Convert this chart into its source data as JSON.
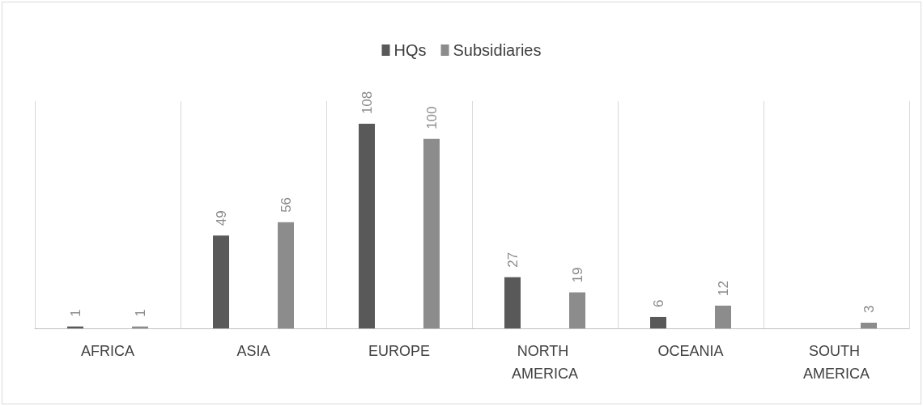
{
  "chart_data": {
    "type": "bar",
    "categories": [
      "AFRICA",
      "ASIA",
      "EUROPE",
      "NORTH AMERICA",
      "OCEANIA",
      "SOUTH AMERICA"
    ],
    "series": [
      {
        "name": "HQs",
        "color": "#595959",
        "values": [
          1,
          49,
          108,
          27,
          6,
          null
        ],
        "value_labels": [
          "1",
          "49",
          "108",
          "27",
          "6",
          null
        ]
      },
      {
        "name": "Subsidiaries",
        "color": "#8c8c8c",
        "values": [
          1,
          56,
          100,
          19,
          12,
          3
        ],
        "value_labels": [
          "1",
          "56",
          "100",
          "19",
          "12",
          "3"
        ]
      }
    ],
    "grid": "x",
    "legend": "top",
    "tick_labels": "x"
  }
}
